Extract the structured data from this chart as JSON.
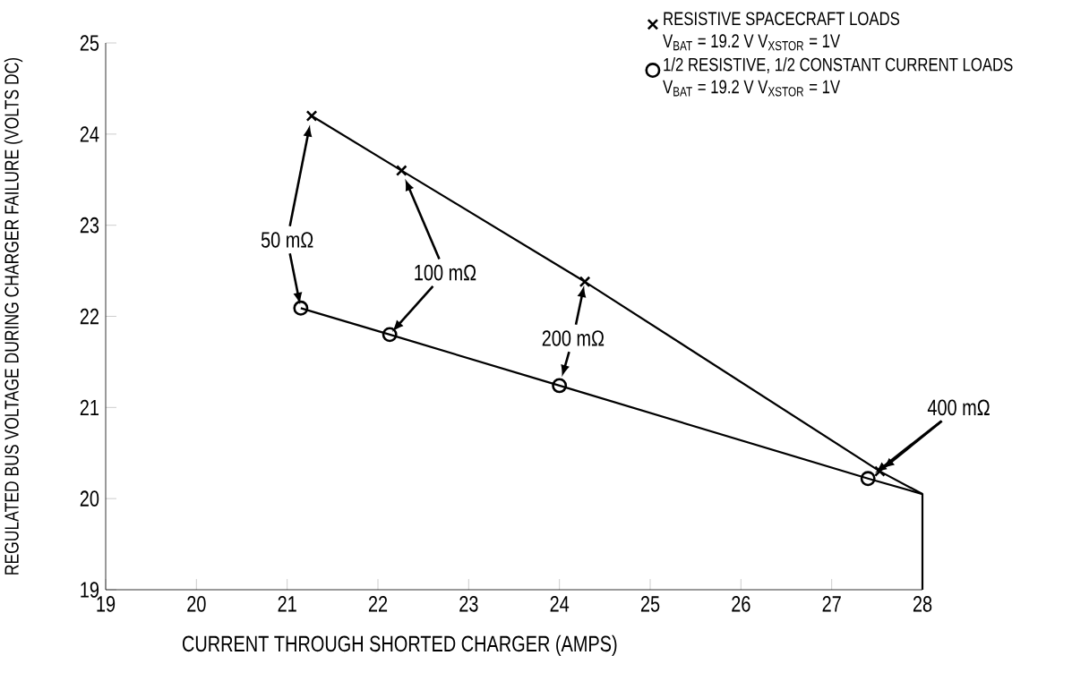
{
  "chart_data": {
    "type": "line",
    "xlabel": "CURRENT THROUGH SHORTED CHARGER (AMPS)",
    "ylabel": "REGULATED BUS VOLTAGE DURING CHARGER FAILURE (VOLTS DC)",
    "xlim": [
      19,
      28
    ],
    "ylim": [
      19,
      25
    ],
    "xticks": [
      19,
      20,
      21,
      22,
      23,
      24,
      25,
      26,
      27,
      28
    ],
    "yticks": [
      19,
      20,
      21,
      22,
      23,
      24,
      25
    ],
    "grid": false,
    "legend": "top right",
    "series": [
      {
        "marker": "none",
        "color": "#000000",
        "x": [
          21.27,
          22.26,
          24.28,
          27.53,
          28,
          28
        ],
        "values": [
          24.2,
          23.6,
          22.38,
          20.3,
          20.05,
          19
        ]
      },
      {
        "marker": "none",
        "color": "#000000",
        "x": [
          21.15,
          22.13,
          24.0,
          27.4,
          28
        ],
        "values": [
          22.09,
          21.8,
          21.24,
          20.22,
          20.05
        ]
      },
      {
        "name": "RESISTIVE SPACECRAFT LOADS",
        "type": "scatter",
        "marker": "cross",
        "color": "#000000",
        "x": [
          21.27,
          22.26,
          24.28,
          27.53
        ],
        "values": [
          24.2,
          23.6,
          22.38,
          20.3
        ]
      },
      {
        "name": "1/2 RESISTIVE, 1/2 CONSTANT CURRENT LOADS",
        "type": "scatter",
        "marker": "circle",
        "color": "#000000",
        "x": [
          21.15,
          22.13,
          24.0,
          27.4
        ],
        "values": [
          22.09,
          21.8,
          21.24,
          20.22
        ]
      }
    ],
    "annotations": [
      "V$_{BAT}$ = 19.2 V V$_{XSTOR}$ = 1V",
      "V$_{BAT}$ = 19.2 V V$_{XSTOR}$ = 1V",
      {
        "text": "50 mΩ",
        "x": 21.15,
        "y": 22.09
      },
      {
        "text": "100 mΩ",
        "x": 22.13,
        "y": 21.8
      },
      {
        "text": "200 mΩ",
        "x": 24.28,
        "y": 22.38
      },
      {
        "text": "400 mΩ",
        "x": 27.53,
        "y": 20.3
      }
    ]
  }
}
